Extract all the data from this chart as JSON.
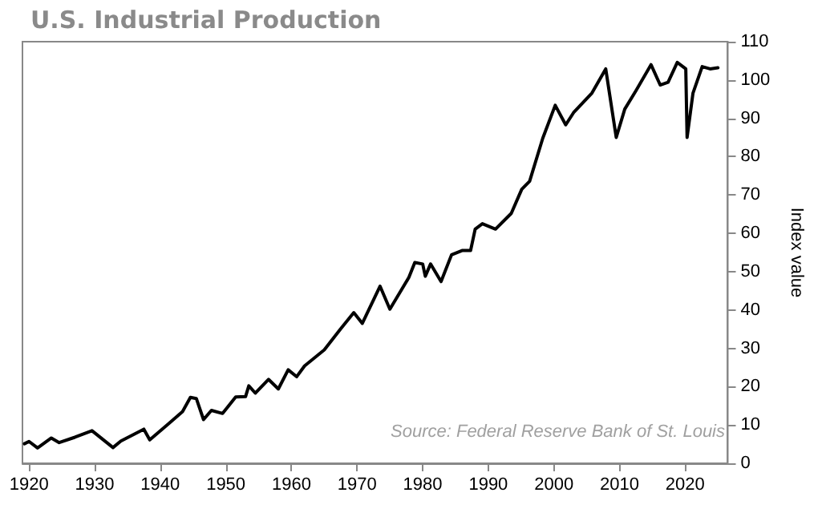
{
  "chart_data": {
    "type": "line",
    "title": "U.S. Industrial Production",
    "ylabel": "Index value",
    "annotations": [
      "Source: Federal Reserve Bank of St. Louis"
    ],
    "x": [
      1919.3,
      1920,
      1921.3,
      1923.4,
      1924.6,
      1927,
      1929.6,
      1932.8,
      1934,
      1937.5,
      1938.4,
      1941.4,
      1943.4,
      1944.6,
      1945.5,
      1946.6,
      1947.8,
      1949.5,
      1951.5,
      1953,
      1953.5,
      1954.5,
      1956.5,
      1958,
      1959.5,
      1960.8,
      1962,
      1965,
      1967.5,
      1969.5,
      1970.8,
      1973.5,
      1975,
      1977.9,
      1978.8,
      1980,
      1980.4,
      1981.2,
      1982.8,
      1984.4,
      1986,
      1987.3,
      1988,
      1989.1,
      1991.1,
      1993.5,
      1995.1,
      1996.3,
      1998.3,
      2000.2,
      2001.8,
      2003,
      2005.8,
      2007.9,
      2009.5,
      2010.8,
      2012.5,
      2014.8,
      2016.2,
      2017.4,
      2018.8,
      2020.1,
      2020.3,
      2021.2,
      2022.6,
      2023.8,
      2025
    ],
    "series": [
      {
        "color": "#000000",
        "values": [
          5.1,
          5.7,
          4.0,
          6.6,
          5.4,
          6.8,
          8.5,
          4.1,
          5.8,
          8.9,
          6.1,
          10.5,
          13.5,
          17.2,
          16.9,
          11.4,
          13.8,
          13.0,
          17.3,
          17.4,
          20.2,
          18.3,
          21.9,
          19.4,
          24.4,
          22.6,
          25.4,
          29.6,
          35.1,
          39.3,
          36.5,
          46.2,
          40.2,
          48.5,
          52.4,
          52.0,
          48.8,
          52.0,
          47.4,
          54.4,
          55.5,
          55.5,
          61.1,
          62.5,
          61.1,
          65.2,
          71.5,
          73.6,
          84.8,
          93.4,
          88.3,
          91.5,
          96.6,
          102.9,
          85.0,
          92.4,
          97.2,
          104.0,
          98.7,
          99.4,
          104.6,
          102.9,
          85.0,
          96.6,
          103.5,
          102.9,
          103.2
        ]
      }
    ],
    "xlim": [
      1919,
      2026.5
    ],
    "xticks": [
      1920,
      1930,
      1940,
      1950,
      1960,
      1970,
      1980,
      1990,
      2000,
      2010,
      2020
    ],
    "ylim": [
      0,
      110
    ],
    "yticks": [
      0,
      10,
      20,
      30,
      40,
      50,
      60,
      70,
      80,
      90,
      100,
      110
    ],
    "grid": false,
    "marker": "none",
    "line_style": "solid"
  }
}
